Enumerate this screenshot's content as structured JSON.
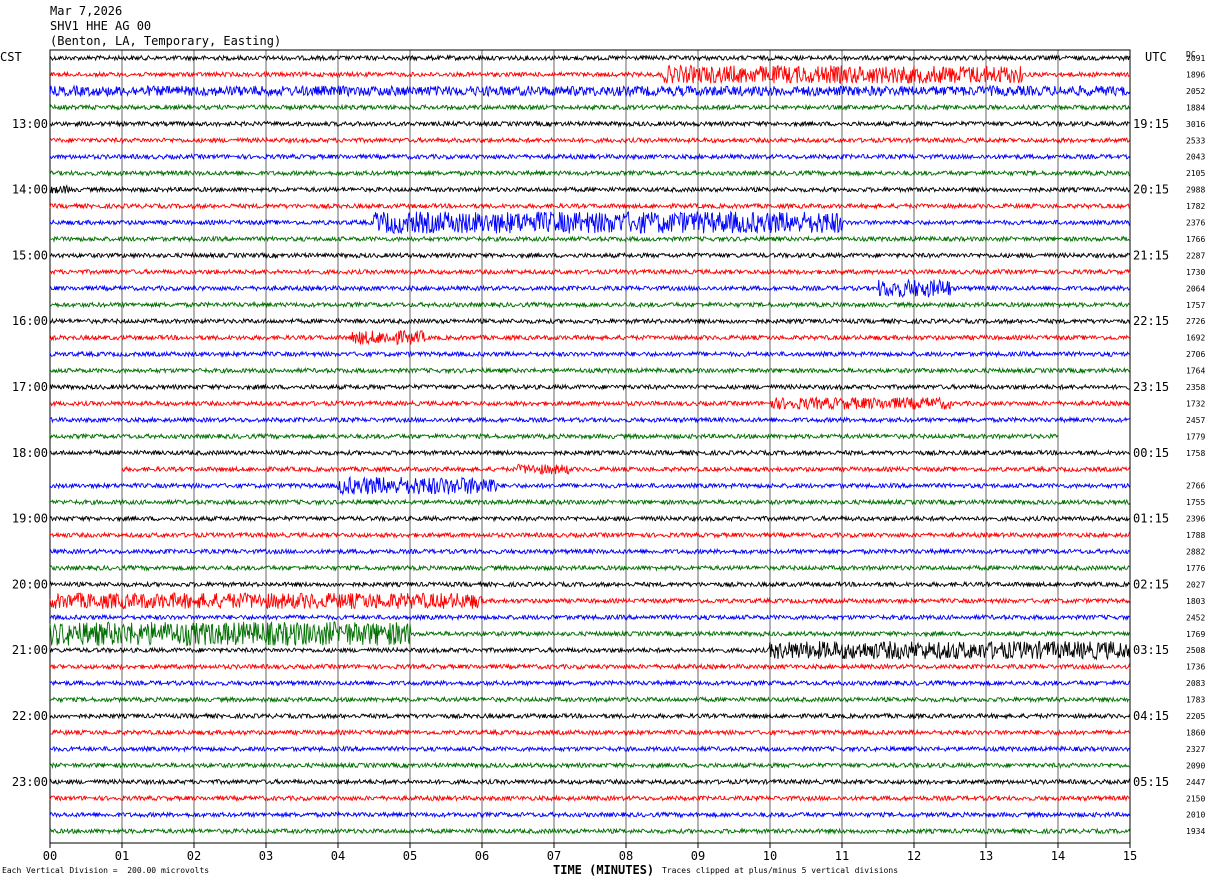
{
  "header": {
    "date": "Mar 7,2026",
    "station": "SHV1 HHE AG 00",
    "location": "(Benton, LA, Temporary, Easting)"
  },
  "left_timezone": "CST",
  "right_timezone": "UTC",
  "dc_label": "DC",
  "footer": {
    "scale_note": "Each Vertical Division =  200.00 microvolts",
    "clip_note": "Traces clipped at plus/minus 5 vertical divisions"
  },
  "chart_data": {
    "type": "line",
    "title": "SHV1 HHE AG 00",
    "xlabel": "TIME (MINUTES)",
    "xlim": [
      0,
      15
    ],
    "x_ticks": [
      "00",
      "01",
      "02",
      "03",
      "04",
      "05",
      "06",
      "07",
      "08",
      "09",
      "10",
      "11",
      "12",
      "13",
      "14",
      "15"
    ],
    "left_hour_labels": [
      "13:00",
      "14:00",
      "15:00",
      "16:00",
      "17:00",
      "18:00",
      "19:00",
      "20:00",
      "21:00",
      "22:00",
      "23:00"
    ],
    "right_hour_labels": [
      "19:15",
      "20:15",
      "21:15",
      "22:15",
      "23:15",
      "00:15",
      "01:15",
      "02:15",
      "03:15",
      "04:15",
      "05:15"
    ],
    "trace_count": 48,
    "trace_colors": [
      "#000000",
      "#ff0000",
      "#0000ff",
      "#007000"
    ],
    "dc_offsets": [
      "2091",
      "1896",
      "2052",
      "1884",
      "3016",
      "2533",
      "2043",
      "2105",
      "2988",
      "1782",
      "2376",
      "1766",
      "2287",
      "1730",
      "2064",
      "1757",
      "2726",
      "1692",
      "2706",
      "1764",
      "2358",
      "1732",
      "2457",
      "1779",
      "1758",
      "",
      "2766",
      "1755",
      "2396",
      "1788",
      "2882",
      "1776",
      "2027",
      "1803",
      "2452",
      "1769",
      "2508",
      "1736",
      "2083",
      "1783",
      "2205",
      "1860",
      "2327",
      "2090",
      "2447",
      "2150",
      "2010",
      "1934"
    ]
  }
}
